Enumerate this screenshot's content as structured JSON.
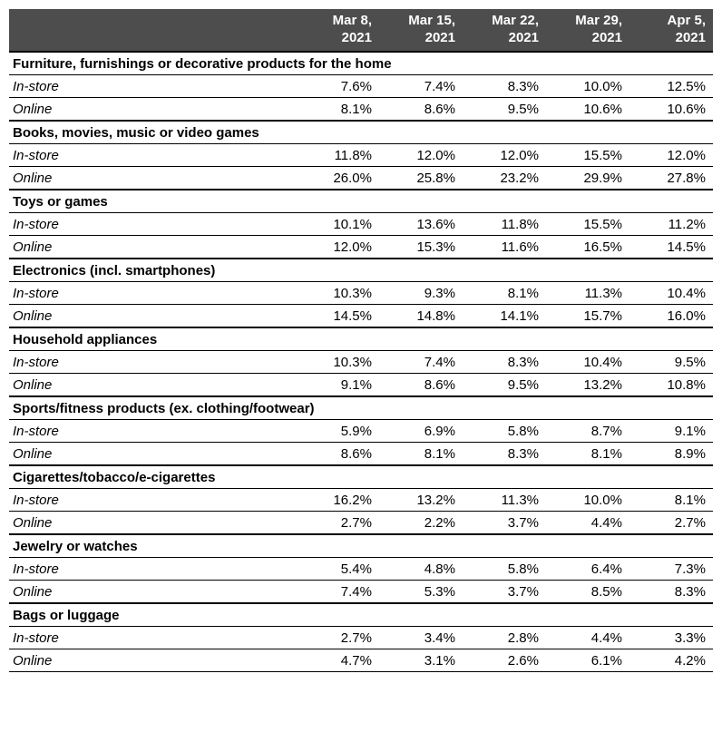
{
  "header_bg": "#4d4d4d",
  "header_fg": "#ffffff",
  "columns": [
    {
      "line1": "Mar 8,",
      "line2": "2021"
    },
    {
      "line1": "Mar 15,",
      "line2": "2021"
    },
    {
      "line1": "Mar 22,",
      "line2": "2021"
    },
    {
      "line1": "Mar 29,",
      "line2": "2021"
    },
    {
      "line1": "Apr 5,",
      "line2": "2021"
    }
  ],
  "sections": [
    {
      "title": "Furniture, furnishings or decorative products for the home",
      "rows": [
        {
          "label": "In-store",
          "values": [
            "7.6%",
            "7.4%",
            "8.3%",
            "10.0%",
            "12.5%"
          ]
        },
        {
          "label": "Online",
          "values": [
            "8.1%",
            "8.6%",
            "9.5%",
            "10.6%",
            "10.6%"
          ]
        }
      ]
    },
    {
      "title": "Books, movies, music or video games",
      "rows": [
        {
          "label": "In-store",
          "values": [
            "11.8%",
            "12.0%",
            "12.0%",
            "15.5%",
            "12.0%"
          ]
        },
        {
          "label": "Online",
          "values": [
            "26.0%",
            "25.8%",
            "23.2%",
            "29.9%",
            "27.8%"
          ]
        }
      ]
    },
    {
      "title": "Toys or games",
      "rows": [
        {
          "label": "In-store",
          "values": [
            "10.1%",
            "13.6%",
            "11.8%",
            "15.5%",
            "11.2%"
          ]
        },
        {
          "label": "Online",
          "values": [
            "12.0%",
            "15.3%",
            "11.6%",
            "16.5%",
            "14.5%"
          ]
        }
      ]
    },
    {
      "title": "Electronics (incl. smartphones)",
      "rows": [
        {
          "label": "In-store",
          "values": [
            "10.3%",
            "9.3%",
            "8.1%",
            "11.3%",
            "10.4%"
          ]
        },
        {
          "label": "Online",
          "values": [
            "14.5%",
            "14.8%",
            "14.1%",
            "15.7%",
            "16.0%"
          ]
        }
      ]
    },
    {
      "title": "Household appliances",
      "rows": [
        {
          "label": "In-store",
          "values": [
            "10.3%",
            "7.4%",
            "8.3%",
            "10.4%",
            "9.5%"
          ]
        },
        {
          "label": "Online",
          "values": [
            "9.1%",
            "8.6%",
            "9.5%",
            "13.2%",
            "10.8%"
          ]
        }
      ]
    },
    {
      "title": "Sports/fitness products (ex. clothing/footwear)",
      "rows": [
        {
          "label": "In-store",
          "values": [
            "5.9%",
            "6.9%",
            "5.8%",
            "8.7%",
            "9.1%"
          ]
        },
        {
          "label": "Online",
          "values": [
            "8.6%",
            "8.1%",
            "8.3%",
            "8.1%",
            "8.9%"
          ]
        }
      ]
    },
    {
      "title": "Cigarettes/tobacco/e-cigarettes",
      "rows": [
        {
          "label": "In-store",
          "values": [
            "16.2%",
            "13.2%",
            "11.3%",
            "10.0%",
            "8.1%"
          ]
        },
        {
          "label": "Online",
          "values": [
            "2.7%",
            "2.2%",
            "3.7%",
            "4.4%",
            "2.7%"
          ]
        }
      ]
    },
    {
      "title": "Jewelry or watches",
      "rows": [
        {
          "label": "In-store",
          "values": [
            "5.4%",
            "4.8%",
            "5.8%",
            "6.4%",
            "7.3%"
          ]
        },
        {
          "label": "Online",
          "values": [
            "7.4%",
            "5.3%",
            "3.7%",
            "8.5%",
            "8.3%"
          ]
        }
      ]
    },
    {
      "title": "Bags or luggage",
      "rows": [
        {
          "label": "In-store",
          "values": [
            "2.7%",
            "3.4%",
            "2.8%",
            "4.4%",
            "3.3%"
          ]
        },
        {
          "label": "Online",
          "values": [
            "4.7%",
            "3.1%",
            "2.6%",
            "6.1%",
            "4.2%"
          ]
        }
      ]
    }
  ]
}
